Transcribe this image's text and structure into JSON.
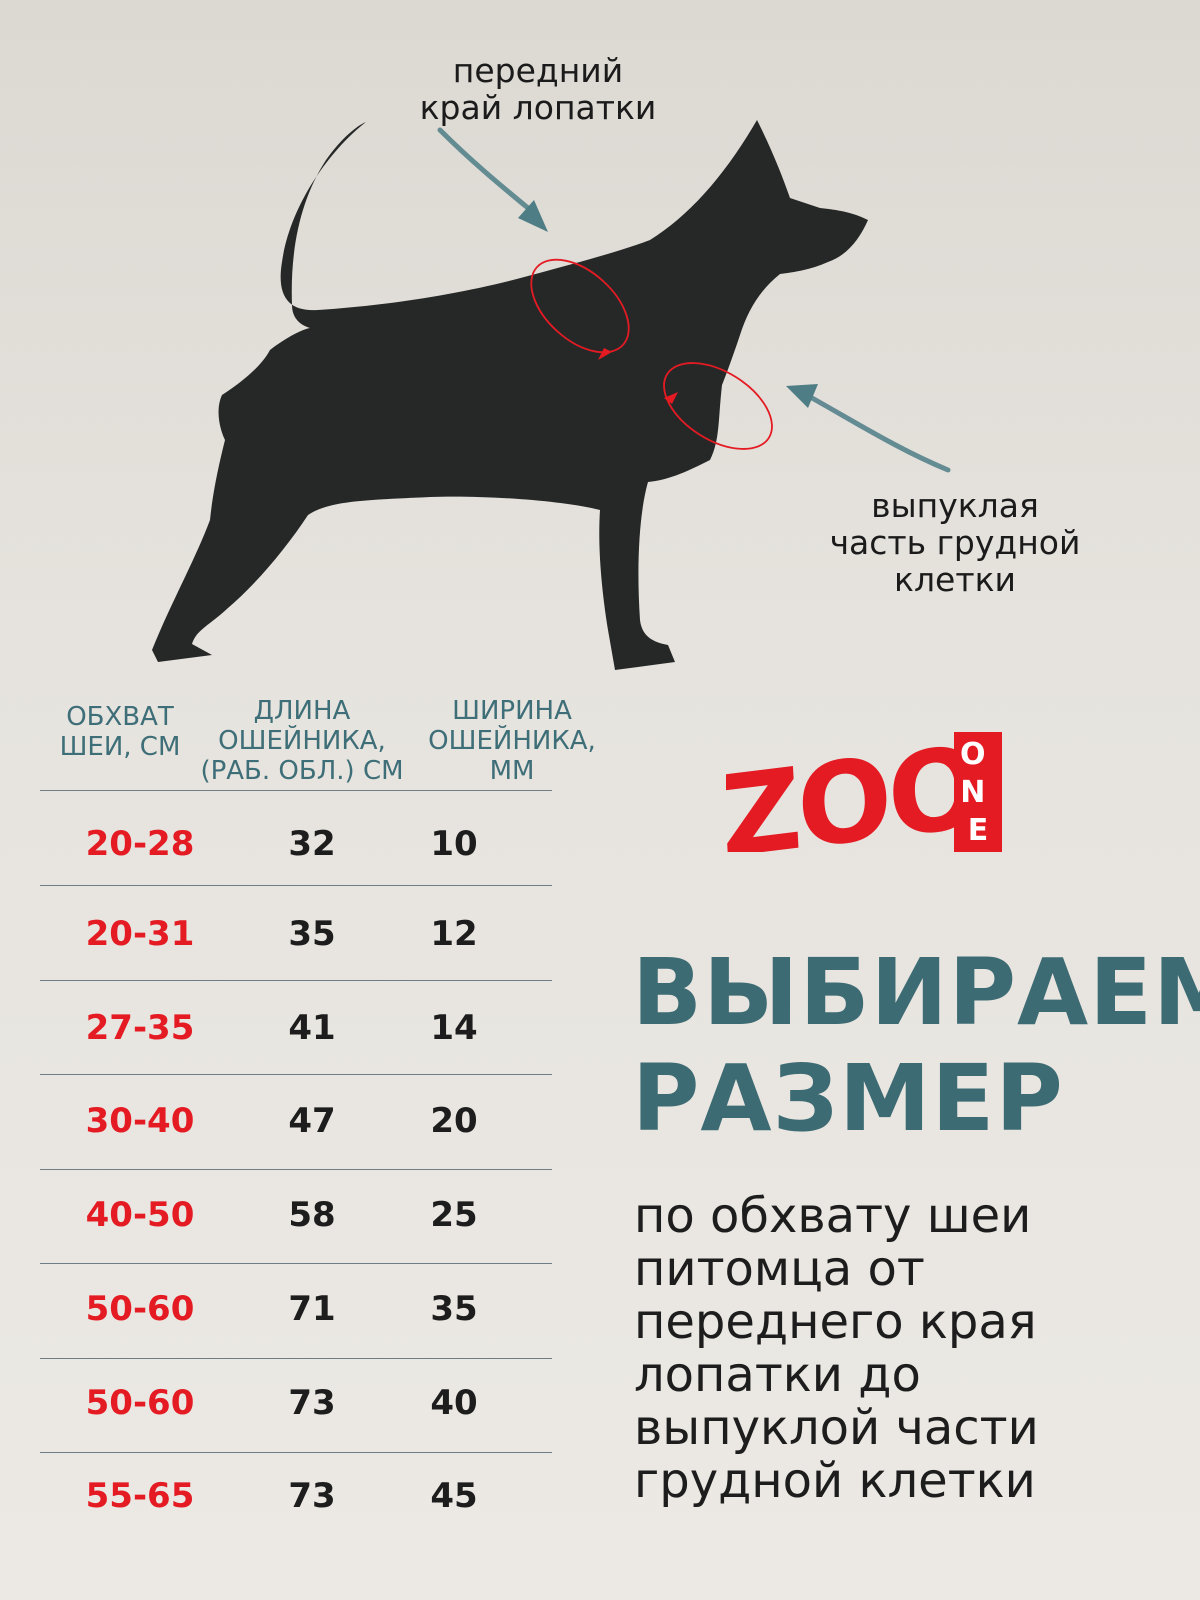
{
  "annotations": {
    "top_label": [
      "передний",
      "край лопатки"
    ],
    "right_label": [
      "выпуклая",
      "часть грудной",
      "клетки"
    ]
  },
  "table": {
    "headers": [
      [
        "ОБХВАТ",
        "ШЕИ, СМ"
      ],
      [
        "ДЛИНА",
        "ОШЕЙНИКА,",
        "(РАБ. ОБЛ.) СМ"
      ],
      [
        "ШИРИНА",
        "ОШЕЙНИКА,",
        "ММ"
      ]
    ],
    "rows": [
      [
        "20-28",
        "32",
        "10"
      ],
      [
        "20-31",
        "35",
        "12"
      ],
      [
        "27-35",
        "41",
        "14"
      ],
      [
        "30-40",
        "47",
        "20"
      ],
      [
        "40-50",
        "58",
        "25"
      ],
      [
        "50-60",
        "71",
        "35"
      ],
      [
        "50-60",
        "73",
        "40"
      ],
      [
        "55-65",
        "73",
        "45"
      ]
    ]
  },
  "logo": {
    "main": "ZOO",
    "side": "ONE"
  },
  "title": [
    "ВЫБИРАЕМ",
    "РАЗМЕР"
  ],
  "subtitle": [
    "по обхвату шеи",
    "питомца от",
    "переднего края",
    "лопатки до",
    "выпуклой части",
    "грудной клетки"
  ],
  "colors": {
    "accent_red": "#e41b23",
    "teal": "#3d6b73",
    "silhouette": "#262828",
    "arrow": "#4e7d86"
  }
}
